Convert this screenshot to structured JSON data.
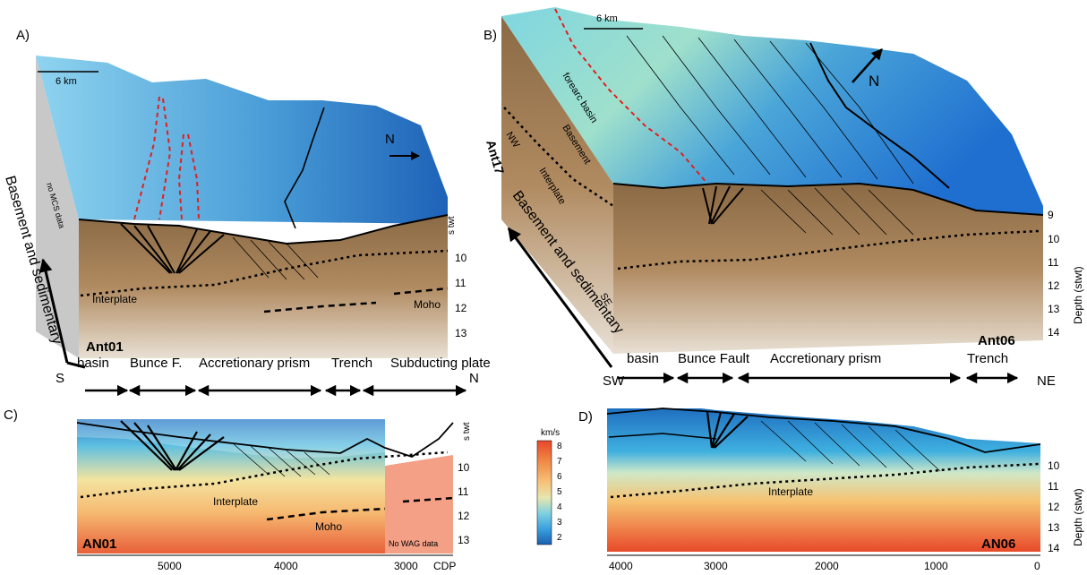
{
  "panels": {
    "a": {
      "letter": "A)",
      "scale": "6 km",
      "north": "N",
      "side_note": "no MCS data",
      "section": "Ant01",
      "axis_unit": "s twt",
      "ticks": [
        "10",
        "11",
        "12",
        "13"
      ],
      "interplate": "Interplate",
      "moho": "Moho",
      "side_label": "Basement and sedimentary"
    },
    "b": {
      "letter": "B)",
      "scale": "6 km",
      "north": "N",
      "section": "Ant06",
      "side_section": "Ant17",
      "nw": "NW",
      "se": "SE",
      "forearc": "forearc basin",
      "basement": "Basement",
      "interplate": "Interplate",
      "axis_unit": "Depth (stwt)",
      "ticks": [
        "9",
        "10",
        "11",
        "12",
        "13",
        "14"
      ],
      "side_label": "Basement and sedimentary"
    },
    "c": {
      "letter": "C)",
      "section": "AN01",
      "interplate": "Interplate",
      "moho": "Moho",
      "no_data": "No WAG data",
      "axis_unit": "s twt",
      "ticks": [
        "10",
        "11",
        "12",
        "13"
      ],
      "cdp_ticks": [
        "5000",
        "4000",
        "3000"
      ],
      "cdp": "CDP"
    },
    "d": {
      "letter": "D)",
      "section": "AN06",
      "interplate": "Interplate",
      "axis_unit": "Depth (stwt)",
      "ticks": [
        "10",
        "11",
        "12",
        "13",
        "14"
      ],
      "cdp_ticks": [
        "4000",
        "3000",
        "2000",
        "1000",
        "0"
      ]
    }
  },
  "zones_a": {
    "s": "S",
    "n": "N",
    "labels": [
      "basin",
      "Bunce F.",
      "Accretionary prism",
      "Trench",
      "Subducting plate"
    ]
  },
  "zones_b": {
    "sw": "SW",
    "ne": "NE",
    "labels": [
      "basin",
      "Bunce Fault",
      "Accretionary prism",
      "Trench"
    ]
  },
  "colorbar": {
    "unit": "km/s",
    "ticks": [
      "8",
      "7",
      "6",
      "5",
      "4",
      "3",
      "2"
    ],
    "colors": [
      "#e8472a",
      "#f08a45",
      "#f6b870",
      "#f7d99a",
      "#bfe3d6",
      "#5fc0e0",
      "#1d75c4"
    ]
  }
}
